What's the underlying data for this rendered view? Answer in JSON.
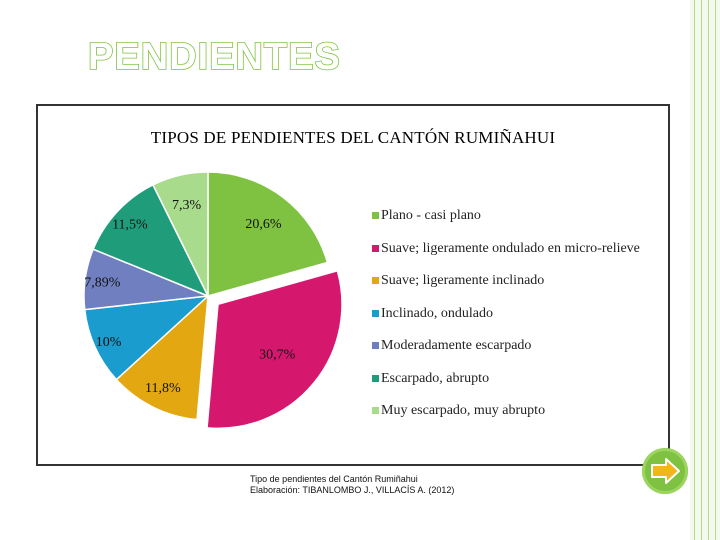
{
  "slide": {
    "title": "PENDIENTES",
    "caption_line1": "Tipo de pendientes del Cantón Rumiñahui",
    "caption_line2": "Elaboración: TIBANLOMBO J., VILLACÍS A. (2012)"
  },
  "nav": {
    "next_icon": "arrow-right-icon"
  },
  "colors": {
    "accent": "#7fc241"
  },
  "chart_data": {
    "type": "pie",
    "title": "TIPOS DE PENDIENTES DEL CANTÓN RUMIÑAHUI",
    "legend_position": "right",
    "slices": [
      {
        "label": "Plano - casi plano",
        "value": 20.6,
        "display": "20,6%",
        "color": "#7fc241",
        "exploded": false
      },
      {
        "label": "Suave; ligeramente ondulado en micro-relieve",
        "value": 30.7,
        "display": "30,7%",
        "color": "#d6176e",
        "exploded": true
      },
      {
        "label": "Suave; ligeramente inclinado",
        "value": 11.8,
        "display": "11,8%",
        "color": "#e3a712",
        "exploded": false
      },
      {
        "label": "Inclinado, ondulado",
        "value": 10,
        "display": "10%",
        "color": "#1a9ccf",
        "exploded": false
      },
      {
        "label": "Moderadamente escarpado",
        "value": 7.89,
        "display": "7,89%",
        "color": "#6f7fc0",
        "exploded": false
      },
      {
        "label": "Escarpado, abrupto",
        "value": 11.5,
        "display": "11,5%",
        "color": "#1f9d7a",
        "exploded": false
      },
      {
        "label": "Muy escarpado, muy abrupto",
        "value": 7.3,
        "display": "7,3%",
        "color": "#a8dc8c",
        "exploded": false
      }
    ]
  }
}
